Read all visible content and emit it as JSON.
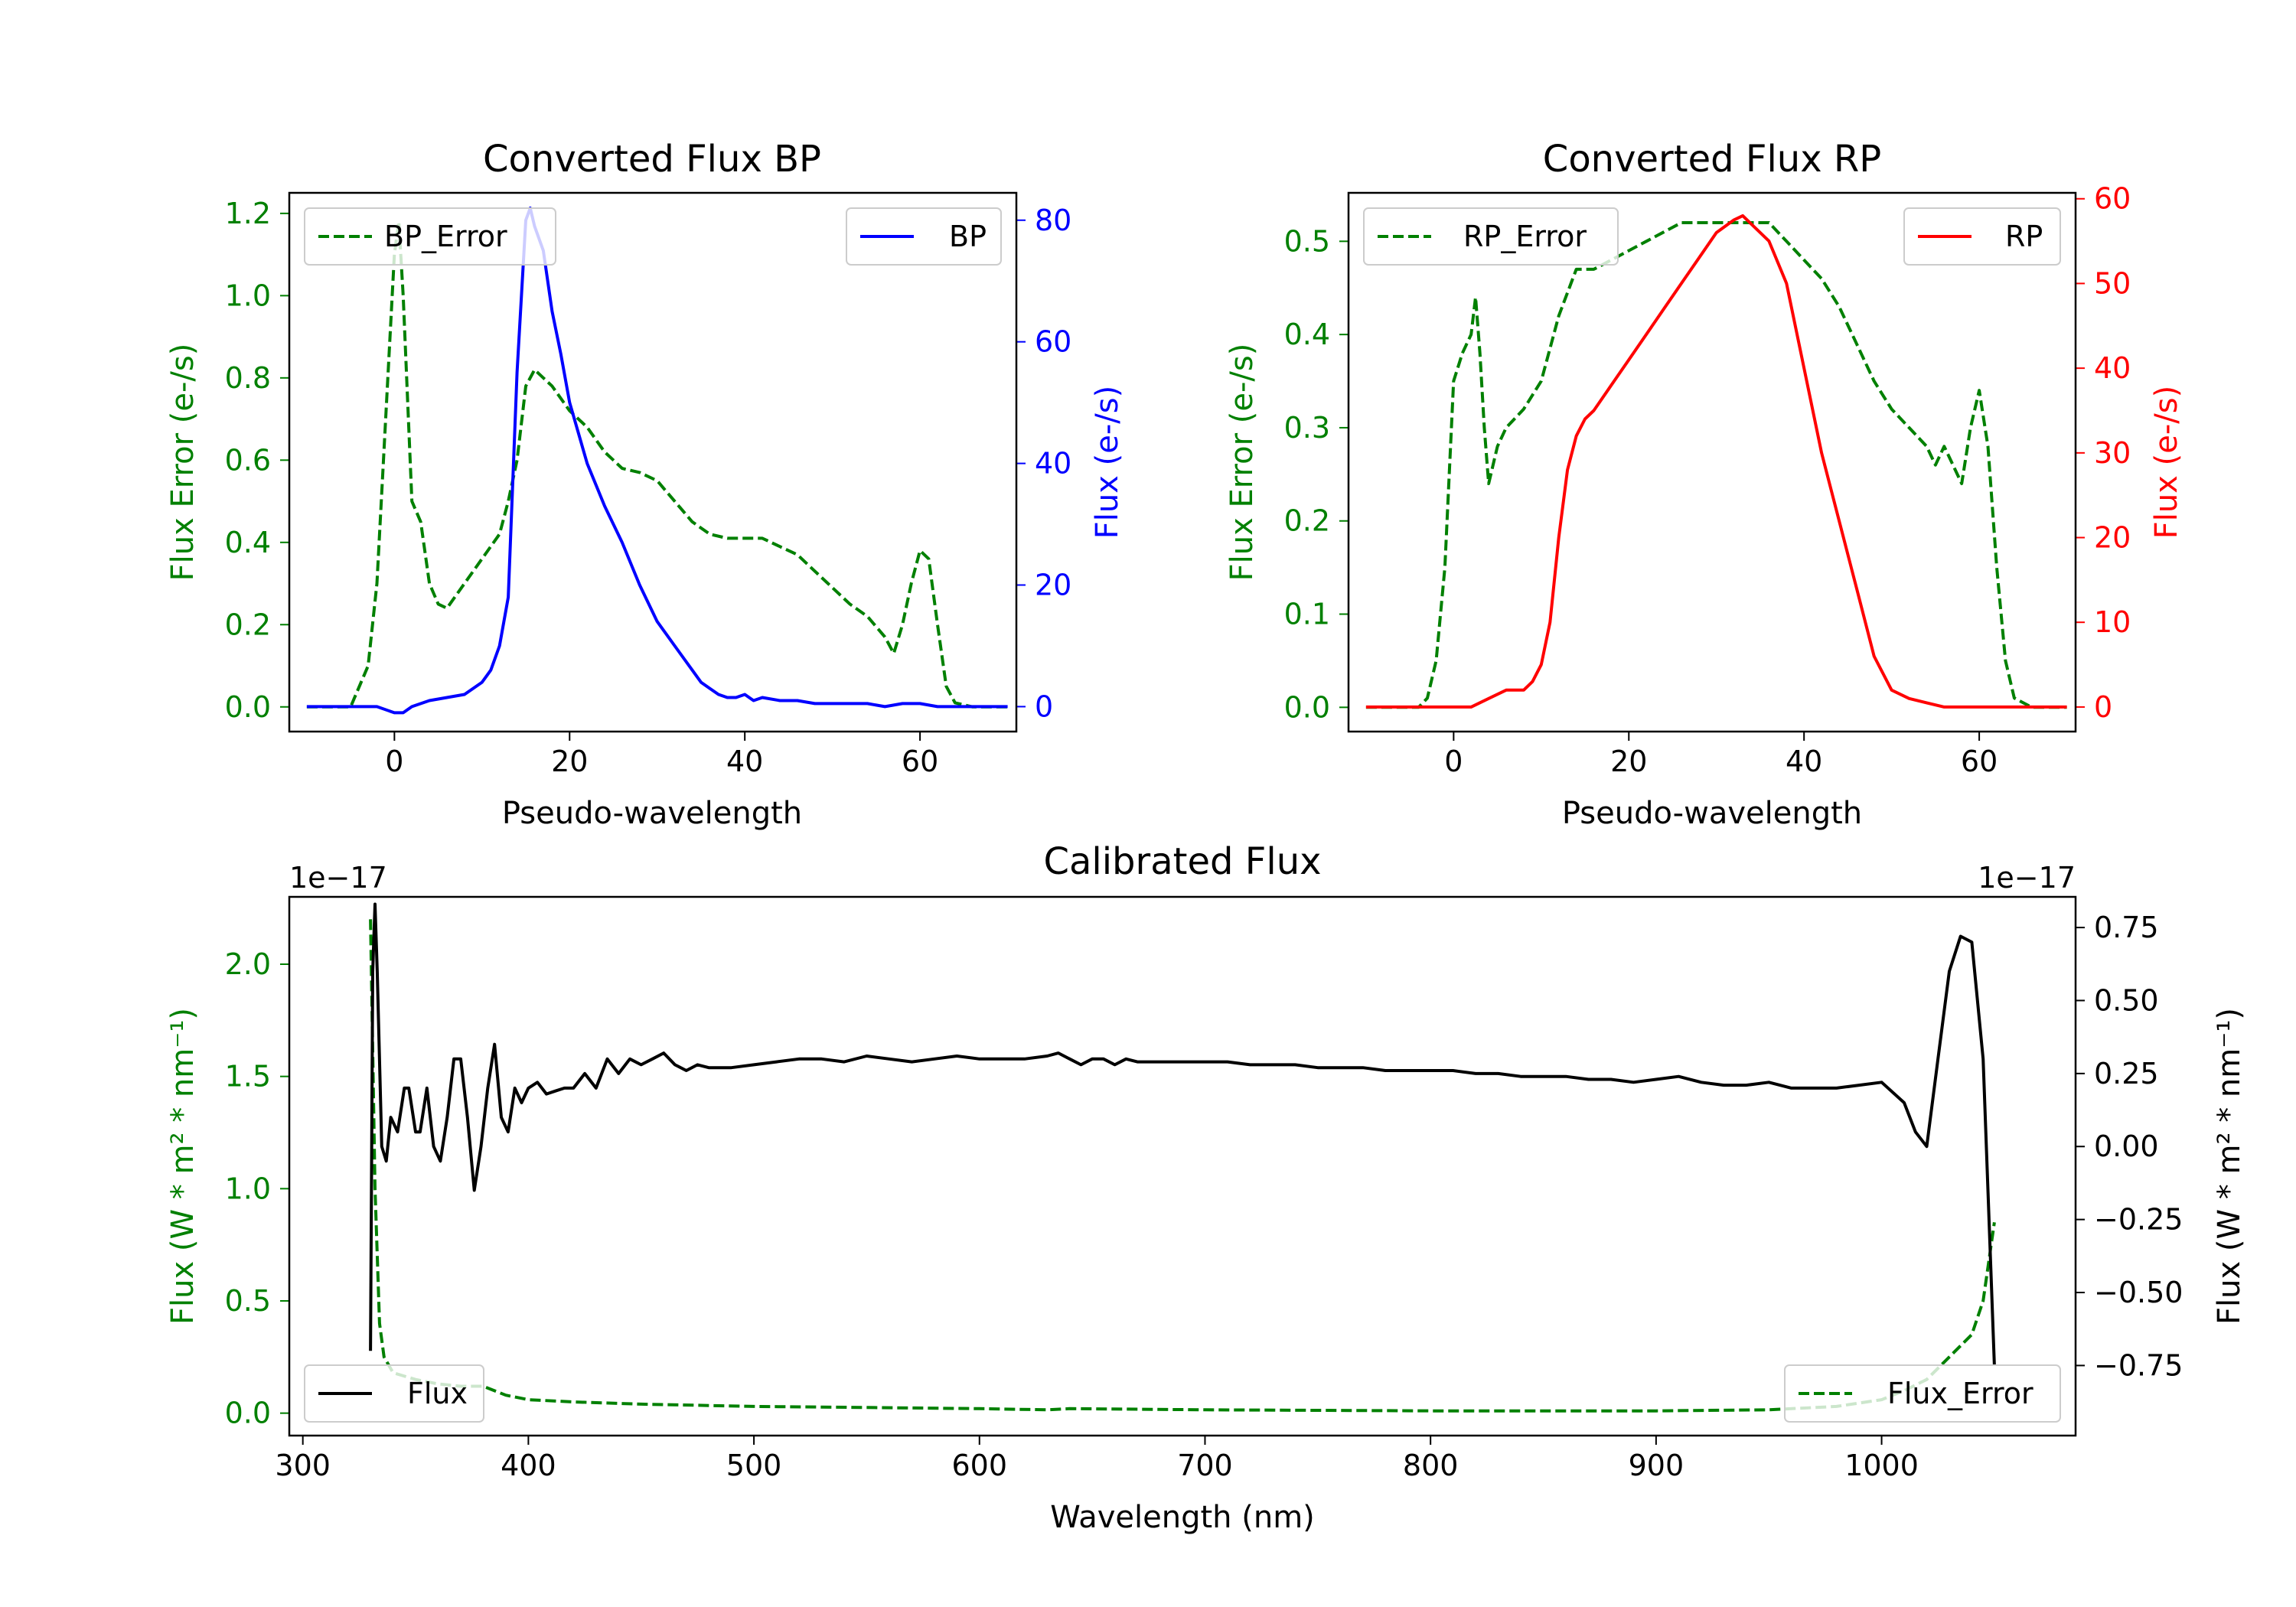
{
  "figure": {
    "background": "#ffffff"
  },
  "chart_data": [
    {
      "id": "bp",
      "type": "line",
      "title": "Converted Flux BP",
      "xlabel": "Pseudo-wavelength",
      "ylabel_left": "Flux Error (e-/s)",
      "ylabel_right": "Flux (e-/s)",
      "xlim": [
        -12,
        71
      ],
      "ylim_left": [
        -0.06,
        1.25
      ],
      "ylim_right": [
        -4.1,
        84.5
      ],
      "xticks": [
        0,
        20,
        40,
        60
      ],
      "yticks_left": [
        0.0,
        0.2,
        0.4,
        0.6,
        0.8,
        1.0,
        1.2
      ],
      "yticks_right": [
        0,
        20,
        40,
        60,
        80
      ],
      "ytick_labels_left": [
        "0.0",
        "0.2",
        "0.4",
        "0.6",
        "0.8",
        "1.0",
        "1.2"
      ],
      "ytick_labels_right": [
        "0",
        "20",
        "40",
        "60",
        "80"
      ],
      "legend_left": {
        "label": "BP_Error",
        "placement": "upper left",
        "color": "#008000",
        "style": "dashed"
      },
      "legend_right": {
        "label": "BP",
        "placement": "upper right",
        "color": "#0000ff",
        "style": "solid"
      },
      "series": [
        {
          "name": "BP_Error",
          "axis": "left",
          "color": "#008000",
          "style": "dashed",
          "x": [
            -10,
            -5,
            -3,
            -2,
            -1,
            0,
            0.5,
            1,
            2,
            3,
            4,
            5,
            6,
            8,
            10,
            12,
            13,
            14,
            15,
            16,
            17,
            18,
            20,
            22,
            24,
            25,
            26,
            28,
            30,
            32,
            34,
            36,
            38,
            40,
            42,
            44,
            46,
            48,
            50,
            52,
            54,
            56,
            57,
            58,
            59,
            60,
            61,
            62,
            63,
            64,
            66,
            68,
            70
          ],
          "y": [
            0.0,
            0.0,
            0.1,
            0.3,
            0.7,
            1.1,
            1.18,
            1.0,
            0.5,
            0.45,
            0.3,
            0.25,
            0.24,
            0.3,
            0.36,
            0.42,
            0.5,
            0.6,
            0.78,
            0.82,
            0.8,
            0.78,
            0.72,
            0.68,
            0.62,
            0.6,
            0.58,
            0.57,
            0.55,
            0.5,
            0.45,
            0.42,
            0.41,
            0.41,
            0.41,
            0.39,
            0.37,
            0.33,
            0.29,
            0.25,
            0.22,
            0.17,
            0.13,
            0.2,
            0.3,
            0.38,
            0.36,
            0.2,
            0.05,
            0.01,
            0.0,
            0.0,
            0.0
          ]
        },
        {
          "name": "BP",
          "axis": "right",
          "color": "#0000ff",
          "style": "solid",
          "x": [
            -10,
            -5,
            -2,
            0,
            1,
            2,
            4,
            6,
            8,
            10,
            11,
            12,
            13,
            14,
            15,
            15.5,
            16,
            17,
            18,
            19,
            20,
            22,
            24,
            26,
            28,
            30,
            32,
            34,
            35,
            36,
            37,
            38,
            39,
            40,
            41,
            42,
            44,
            46,
            48,
            50,
            52,
            54,
            56,
            58,
            60,
            62,
            64,
            66,
            68,
            70
          ],
          "y": [
            0,
            0,
            0,
            -1,
            -1,
            0,
            1,
            1.5,
            2,
            4,
            6,
            10,
            18,
            55,
            80,
            82,
            79,
            75,
            65,
            58,
            50,
            40,
            33,
            27,
            20,
            14,
            10,
            6,
            4,
            3,
            2,
            1.5,
            1.5,
            2,
            1,
            1.5,
            1,
            1,
            0.5,
            0.5,
            0.5,
            0.5,
            0,
            0.5,
            0.5,
            0,
            0,
            0,
            0,
            0
          ]
        }
      ]
    },
    {
      "id": "rp",
      "type": "line",
      "title": "Converted Flux RP",
      "xlabel": "Pseudo-wavelength",
      "ylabel_left": "Flux Error (e-/s)",
      "ylabel_right": "Flux (e-/s)",
      "xlim": [
        -12,
        71
      ],
      "ylim_left": [
        -0.026,
        0.552
      ],
      "ylim_right": [
        -2.9,
        60.7
      ],
      "xticks": [
        0,
        20,
        40,
        60
      ],
      "yticks_left": [
        0.0,
        0.1,
        0.2,
        0.3,
        0.4,
        0.5
      ],
      "yticks_right": [
        0,
        10,
        20,
        30,
        40,
        50,
        60
      ],
      "ytick_labels_left": [
        "0.0",
        "0.1",
        "0.2",
        "0.3",
        "0.4",
        "0.5"
      ],
      "ytick_labels_right": [
        "0",
        "10",
        "20",
        "30",
        "40",
        "50",
        "60"
      ],
      "legend_left": {
        "label": "RP_Error",
        "placement": "upper left",
        "color": "#008000",
        "style": "dashed"
      },
      "legend_right": {
        "label": "RP",
        "placement": "upper right",
        "color": "#ff0000",
        "style": "solid"
      },
      "series": [
        {
          "name": "RP_Error",
          "axis": "left",
          "color": "#008000",
          "style": "dashed",
          "x": [
            -10,
            -5,
            -4,
            -3,
            -2,
            -1,
            0,
            1,
            2,
            2.5,
            3,
            3.5,
            4,
            5,
            6,
            8,
            10,
            12,
            14,
            16,
            18,
            20,
            22,
            24,
            26,
            28,
            30,
            32,
            34,
            36,
            38,
            40,
            42,
            44,
            46,
            48,
            50,
            52,
            54,
            55,
            56,
            57,
            58,
            59,
            60,
            61,
            62,
            63,
            64,
            66,
            70
          ],
          "y": [
            0.0,
            0.0,
            0.0,
            0.01,
            0.05,
            0.15,
            0.35,
            0.38,
            0.4,
            0.44,
            0.38,
            0.3,
            0.24,
            0.28,
            0.3,
            0.32,
            0.35,
            0.42,
            0.47,
            0.47,
            0.48,
            0.49,
            0.5,
            0.51,
            0.52,
            0.52,
            0.52,
            0.52,
            0.52,
            0.52,
            0.5,
            0.48,
            0.46,
            0.43,
            0.39,
            0.35,
            0.32,
            0.3,
            0.28,
            0.26,
            0.28,
            0.26,
            0.24,
            0.3,
            0.34,
            0.28,
            0.15,
            0.05,
            0.01,
            0.0,
            0.0
          ]
        },
        {
          "name": "RP",
          "axis": "right",
          "color": "#ff0000",
          "style": "solid",
          "x": [
            -10,
            -5,
            0,
            2,
            4,
            6,
            8,
            9,
            10,
            11,
            12,
            13,
            14,
            15,
            16,
            18,
            20,
            22,
            24,
            26,
            28,
            30,
            32,
            33,
            34,
            36,
            38,
            40,
            42,
            44,
            46,
            48,
            50,
            52,
            54,
            56,
            58,
            60,
            65,
            70
          ],
          "y": [
            0,
            0,
            0,
            0,
            1,
            2,
            2,
            3,
            5,
            10,
            20,
            28,
            32,
            34,
            35,
            38,
            41,
            44,
            47,
            50,
            53,
            56,
            57.5,
            58,
            57,
            55,
            50,
            40,
            30,
            22,
            14,
            6,
            2,
            1,
            0.5,
            0,
            0,
            0,
            0,
            0
          ]
        }
      ]
    },
    {
      "id": "calibrated",
      "type": "line",
      "title": "Calibrated Flux",
      "xlabel": "Wavelength (nm)",
      "ylabel_left": "Flux (W * m² * nm⁻¹)",
      "ylabel_right": "Flux (W * m² * nm⁻¹)",
      "offset_left": "1e−17",
      "offset_right": "1e−17",
      "xlim": [
        294,
        1086
      ],
      "ylim_left": [
        -0.1,
        2.3
      ],
      "ylim_right": [
        -0.99,
        0.855
      ],
      "xticks": [
        300,
        400,
        500,
        600,
        700,
        800,
        900,
        1000
      ],
      "yticks_left": [
        0.0,
        0.5,
        1.0,
        1.5,
        2.0
      ],
      "yticks_right": [
        -0.75,
        -0.5,
        -0.25,
        0.0,
        0.25,
        0.5,
        0.75
      ],
      "ytick_labels_left": [
        "0.0",
        "0.5",
        "1.0",
        "1.5",
        "2.0"
      ],
      "ytick_labels_right": [
        "−0.75",
        "−0.50",
        "−0.25",
        "0.00",
        "0.25",
        "0.50",
        "0.75"
      ],
      "legend_left": {
        "label": "Flux",
        "placement": "lower left",
        "color": "#000000",
        "style": "solid"
      },
      "legend_right": {
        "label": "Flux_Error",
        "placement": "lower right",
        "color": "#008000",
        "style": "dashed"
      },
      "series": [
        {
          "name": "Flux_Error",
          "axis": "left",
          "color": "#008000",
          "style": "dashed",
          "x": [
            330,
            332,
            334,
            336,
            340,
            350,
            360,
            370,
            380,
            390,
            400,
            420,
            450,
            500,
            550,
            600,
            630,
            640,
            700,
            800,
            900,
            950,
            980,
            1000,
            1010,
            1020,
            1030,
            1040,
            1045,
            1050
          ],
          "y": [
            2.2,
            1.0,
            0.4,
            0.25,
            0.18,
            0.15,
            0.13,
            0.12,
            0.12,
            0.08,
            0.06,
            0.05,
            0.04,
            0.03,
            0.025,
            0.02,
            0.015,
            0.02,
            0.015,
            0.01,
            0.01,
            0.015,
            0.03,
            0.06,
            0.1,
            0.15,
            0.25,
            0.35,
            0.5,
            0.85
          ]
        },
        {
          "name": "Flux",
          "axis": "right",
          "color": "#000000",
          "style": "solid",
          "x": [
            330,
            331,
            332,
            333,
            335,
            337,
            339,
            342,
            345,
            347,
            350,
            352,
            355,
            358,
            361,
            364,
            367,
            370,
            373,
            376,
            379,
            382,
            385,
            388,
            391,
            394,
            397,
            400,
            404,
            408,
            412,
            416,
            420,
            425,
            430,
            435,
            440,
            445,
            450,
            455,
            460,
            465,
            470,
            475,
            480,
            490,
            500,
            510,
            520,
            530,
            540,
            550,
            560,
            570,
            580,
            590,
            600,
            610,
            620,
            630,
            635,
            640,
            645,
            650,
            655,
            660,
            665,
            670,
            680,
            690,
            700,
            710,
            720,
            730,
            740,
            750,
            760,
            770,
            780,
            790,
            800,
            810,
            820,
            830,
            840,
            850,
            860,
            870,
            880,
            890,
            900,
            910,
            920,
            930,
            940,
            950,
            960,
            970,
            980,
            990,
            1000,
            1010,
            1015,
            1020,
            1025,
            1030,
            1035,
            1040,
            1045,
            1050
          ],
          "y": [
            -0.7,
            0.6,
            0.83,
            0.6,
            0.0,
            -0.05,
            0.1,
            0.05,
            0.2,
            0.2,
            0.05,
            0.05,
            0.2,
            0.0,
            -0.05,
            0.1,
            0.3,
            0.3,
            0.1,
            -0.15,
            0.0,
            0.2,
            0.35,
            0.1,
            0.05,
            0.2,
            0.15,
            0.2,
            0.22,
            0.18,
            0.19,
            0.2,
            0.2,
            0.25,
            0.2,
            0.3,
            0.25,
            0.3,
            0.28,
            0.3,
            0.32,
            0.28,
            0.26,
            0.28,
            0.27,
            0.27,
            0.28,
            0.29,
            0.3,
            0.3,
            0.29,
            0.31,
            0.3,
            0.29,
            0.3,
            0.31,
            0.3,
            0.3,
            0.3,
            0.31,
            0.32,
            0.3,
            0.28,
            0.3,
            0.3,
            0.28,
            0.3,
            0.29,
            0.29,
            0.29,
            0.29,
            0.29,
            0.28,
            0.28,
            0.28,
            0.27,
            0.27,
            0.27,
            0.26,
            0.26,
            0.26,
            0.26,
            0.25,
            0.25,
            0.24,
            0.24,
            0.24,
            0.23,
            0.23,
            0.22,
            0.23,
            0.24,
            0.22,
            0.21,
            0.21,
            0.22,
            0.2,
            0.2,
            0.2,
            0.21,
            0.22,
            0.15,
            0.05,
            0.0,
            0.3,
            0.6,
            0.72,
            0.7,
            0.3,
            -0.75
          ]
        }
      ]
    }
  ]
}
